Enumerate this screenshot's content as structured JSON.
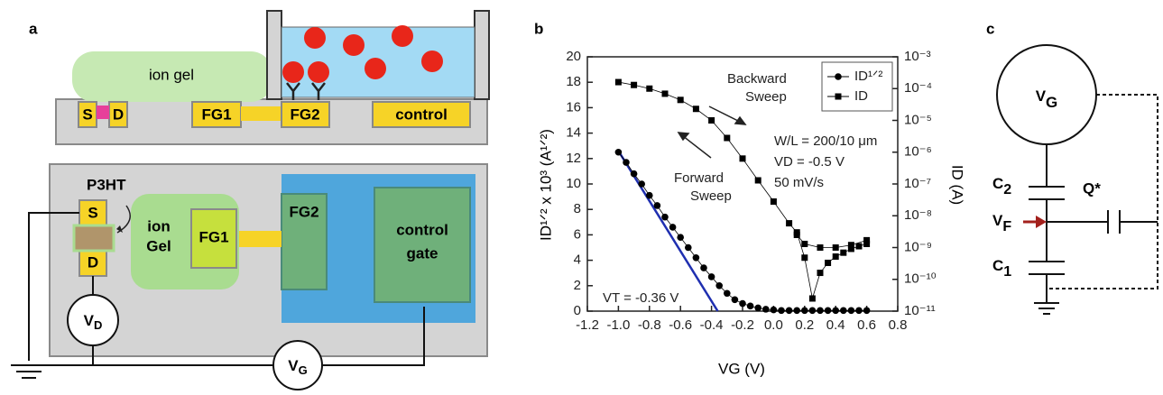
{
  "panel_labels": [
    "a",
    "b",
    "c"
  ],
  "schematic": {
    "cross_section": {
      "gel": "ion gel",
      "source": "S",
      "drain": "D",
      "fg1": "FG1",
      "fg2": "FG2",
      "control": "control"
    },
    "top_view": {
      "source": "S",
      "drain": "D",
      "channel": "P3HT",
      "gel": [
        "ion",
        "Gel"
      ],
      "fg1": "FG1",
      "fg2": "FG2",
      "control": [
        "control",
        "gate"
      ],
      "vd": {
        "main": "V",
        "sub": "D"
      },
      "vg": {
        "main": "V",
        "sub": "G"
      }
    }
  },
  "chart_data": {
    "type": "line",
    "xlabel": "VG (V)",
    "ylabel": "ID¹ᐟ² x 10³ (A¹ᐟ²)",
    "y2label": "ID (A)",
    "xlim": [
      -1.2,
      0.8
    ],
    "xticks": [
      -1.2,
      {
        "value": -1,
        "label": "-1.0"
      },
      -0.8,
      -0.6,
      -0.4,
      -0.2,
      {
        "value": 0,
        "label": "0.0"
      },
      0.2,
      0.4,
      0.6,
      0.8
    ],
    "ylim": [
      0,
      20
    ],
    "yticks": [
      0,
      2,
      4,
      6,
      8,
      10,
      12,
      14,
      16,
      18,
      20
    ],
    "y2lim": [
      1e-11,
      0.001
    ],
    "y2log": true,
    "y2ticks": [
      {
        "value": 1e-11,
        "label": "10⁻¹¹"
      },
      {
        "value": 1e-10,
        "label": "10⁻¹⁰"
      },
      {
        "value": 1e-09,
        "label": "10⁻⁹"
      },
      {
        "value": 1e-08,
        "label": "10⁻⁸"
      },
      {
        "value": 1e-07,
        "label": "10⁻⁷"
      },
      {
        "value": 1e-06,
        "label": "10⁻⁶"
      },
      {
        "value": 1e-05,
        "label": "10⁻⁵"
      },
      {
        "value": 0.0001,
        "label": "10⁻⁴"
      },
      {
        "value": 0.001,
        "label": "10⁻³"
      }
    ],
    "legend": "upper right",
    "series": [
      {
        "name": "ID¹ᐟ²",
        "color": "#000000",
        "marker": "circle",
        "x": [
          -1.0,
          -0.95,
          -0.9,
          -0.85,
          -0.8,
          -0.75,
          -0.7,
          -0.65,
          -0.6,
          -0.55,
          -0.5,
          -0.45,
          -0.4,
          -0.35,
          -0.3,
          -0.25,
          -0.2,
          -0.15,
          -0.1,
          -0.05,
          0.0,
          0.05,
          0.1,
          0.15,
          0.2,
          0.25,
          0.3,
          0.35,
          0.4,
          0.45,
          0.5,
          0.55,
          0.6
        ],
        "values": [
          12.5,
          11.7,
          10.8,
          10.0,
          9.1,
          8.3,
          7.4,
          6.6,
          5.8,
          5.0,
          4.2,
          3.4,
          2.7,
          2.0,
          1.4,
          0.9,
          0.6,
          0.4,
          0.25,
          0.15,
          0.1,
          0.05,
          0.05,
          0.05,
          0.05,
          0.05,
          0.05,
          0.05,
          0.05,
          0.05,
          0.05,
          0.05,
          0.05
        ]
      },
      {
        "name": "ID",
        "color": "#000000",
        "marker": "square",
        "axis": "y2",
        "x": [
          -1.0,
          -0.9,
          -0.8,
          -0.7,
          -0.6,
          -0.5,
          -0.4,
          -0.3,
          -0.2,
          -0.1,
          0.0,
          0.1,
          0.15,
          0.2,
          0.25,
          0.3,
          0.35,
          0.4,
          0.45,
          0.5,
          0.55,
          0.6,
          0.6,
          0.5,
          0.4,
          0.3,
          0.2,
          0.15
        ],
        "values": [
          0.00016,
          0.00013,
          0.0001,
          6.9e-05,
          4.4e-05,
          2.3e-05,
          1e-05,
          2.8e-06,
          6.3e-07,
          1.3e-07,
          2.8e-08,
          5.8e-09,
          3e-09,
          4.8e-10,
          2.5e-11,
          1.6e-10,
          3.3e-10,
          5.2e-10,
          6.9e-10,
          9.1e-10,
          1.1e-09,
          1.3e-09,
          1.7e-09,
          1.2e-09,
          1e-09,
          1e-09,
          1.3e-09,
          2.5e-09
        ]
      }
    ],
    "fit_line": {
      "color": "#1f2fb0",
      "x": [
        -1.0,
        -0.36
      ],
      "values": [
        12.6,
        0
      ]
    },
    "annotations": [
      "Backward",
      "Sweep",
      "Forward",
      "Sweep",
      "W/L = 200/10 μm",
      "VD = -0.5 V",
      "50 mV/s",
      "VT = -0.36 V"
    ]
  },
  "circuit": {
    "vg": {
      "main": "V",
      "sub": "G"
    },
    "c2": {
      "main": "C",
      "sub": "2"
    },
    "q": "Q*",
    "vf": {
      "main": "V",
      "sub": "F"
    },
    "c1": {
      "main": "C",
      "sub": "1"
    }
  }
}
